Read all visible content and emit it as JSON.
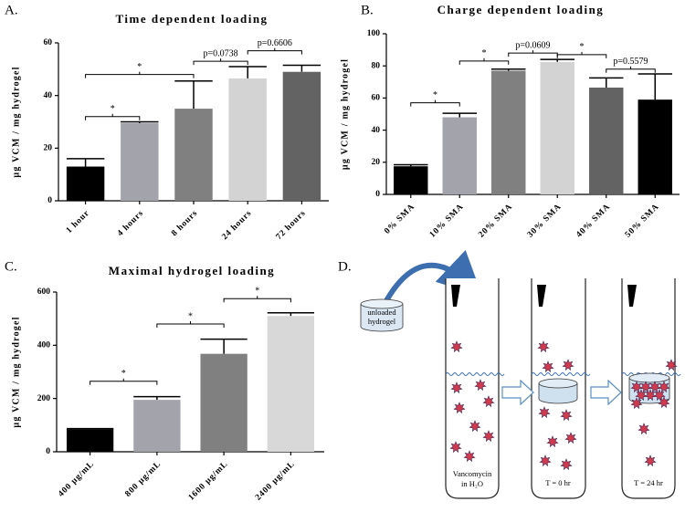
{
  "chart_data": [
    {
      "type": "bar",
      "panel_label": "A.",
      "title": "Time dependent loading",
      "y_label": "µg VCM / mg hydrogel",
      "categories": [
        "1 hour",
        "4 hours",
        "8 hours",
        "24 hours",
        "72 hours"
      ],
      "values": [
        13,
        29.5,
        35,
        46.5,
        49
      ],
      "errors": [
        3,
        0.5,
        10.5,
        4.5,
        2.5
      ],
      "colors": [
        "#000000",
        "#a3a3ab",
        "#808080",
        "#d3d3d3",
        "#636363"
      ],
      "ylim": [
        0,
        60
      ],
      "yticks": [
        0,
        20,
        40,
        60
      ],
      "annotations": [
        {
          "text": "*",
          "from": 0,
          "to": 1,
          "y": 32
        },
        {
          "text": "*",
          "from": 0,
          "to": 2,
          "y": 48
        },
        {
          "text": "p=0.0738",
          "from": 2,
          "to": 3,
          "y": 53
        },
        {
          "text": "p=0.6606",
          "from": 3,
          "to": 4,
          "y": 57
        }
      ]
    },
    {
      "type": "bar",
      "panel_label": "B.",
      "title": "Charge dependent loading",
      "y_label": "µg VCM / mg hydrogel",
      "categories": [
        "0% SMA",
        "10% SMA",
        "20% SMA",
        "30% SMA",
        "40% SMA",
        "50% SMA"
      ],
      "values": [
        17.5,
        48,
        77,
        82.5,
        66.5,
        59
      ],
      "errors": [
        1,
        2.5,
        1,
        1.5,
        6,
        16
      ],
      "colors": [
        "#000000",
        "#a3a3ab",
        "#808080",
        "#d3d3d3",
        "#636363",
        "#000000"
      ],
      "ylim": [
        0,
        100
      ],
      "yticks": [
        0,
        20,
        40,
        60,
        80,
        100
      ],
      "annotations": [
        {
          "text": "*",
          "from": 0,
          "to": 1,
          "y": 57
        },
        {
          "text": "*",
          "from": 1,
          "to": 2,
          "y": 83
        },
        {
          "text": "p=0.0609",
          "from": 2,
          "to": 3,
          "y": 88
        },
        {
          "text": "*",
          "from": 3,
          "to": 4,
          "y": 87
        },
        {
          "text": "p=0.5579",
          "from": 4,
          "to": 5,
          "y": 78
        }
      ]
    },
    {
      "type": "bar",
      "panel_label": "C.",
      "title": "Maximal hydrogel loading",
      "y_label": "µg VCM / mg hydrogel",
      "categories": [
        "400 µg/mL",
        "800 µg/mL",
        "1600 µg/mL",
        "2400 µg/mL"
      ],
      "values": [
        85,
        195,
        368,
        510
      ],
      "errors": [
        2,
        12,
        55,
        12
      ],
      "colors": [
        "#000000",
        "#a3a3ab",
        "#808080",
        "#d8d8d8"
      ],
      "ylim": [
        0,
        600
      ],
      "yticks": [
        0,
        200,
        400,
        600
      ],
      "annotations": [
        {
          "text": "*",
          "from": 0,
          "to": 1,
          "y": 265
        },
        {
          "text": "*",
          "from": 1,
          "to": 2,
          "y": 480
        },
        {
          "text": "*",
          "from": 2,
          "to": 3,
          "y": 575
        }
      ]
    }
  ],
  "diagram": {
    "panel_label": "D.",
    "hydrogel_label_1": "unloaded",
    "hydrogel_label_2": "hydrogel",
    "tube1_label_1": "Vancomycin",
    "tube1_label_2": "in H₂O",
    "tube2_label": "T = 0 hr",
    "tube3_label": "T = 24 hr"
  }
}
